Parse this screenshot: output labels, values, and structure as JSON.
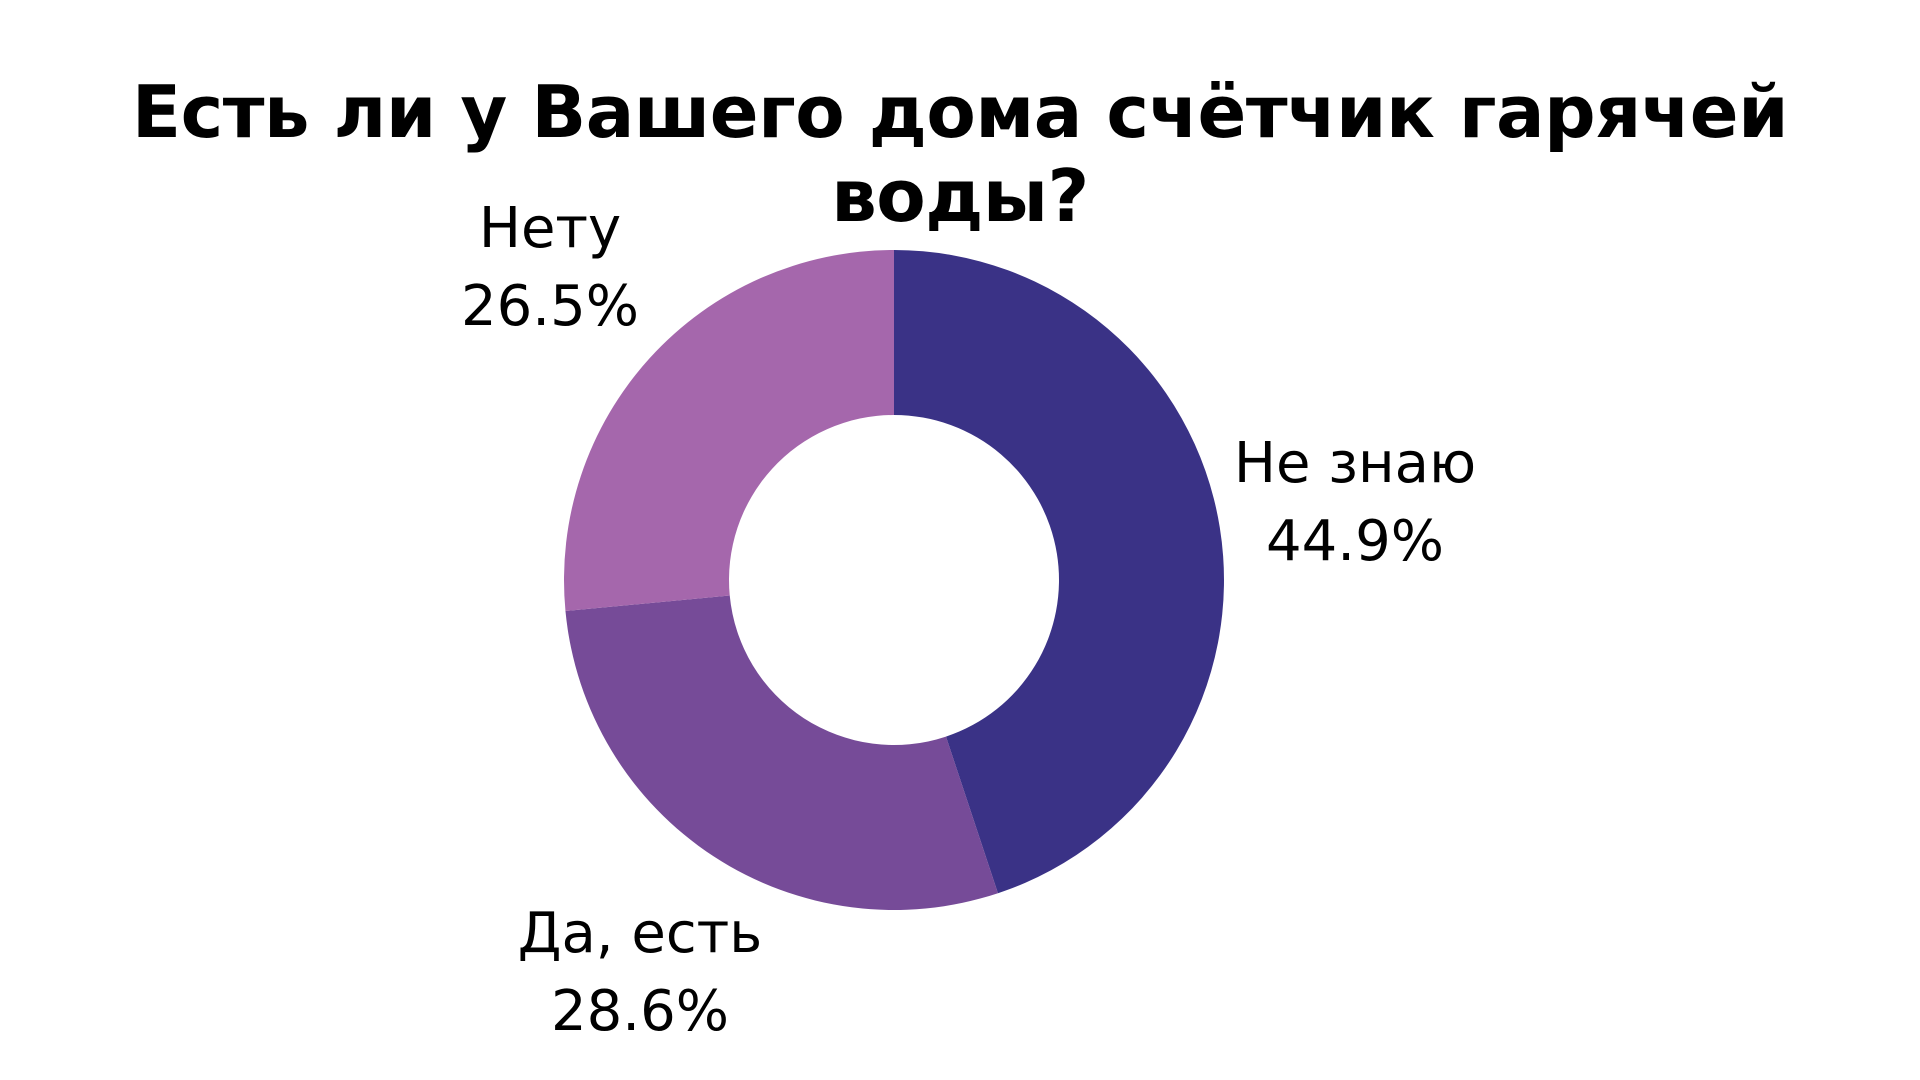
{
  "title": "Есть ли у Вашего дома счётчик гарячей воды?",
  "chart_data": {
    "type": "pie",
    "donut": true,
    "title": "Есть ли у Вашего дома счётчик гарячей воды?",
    "categories": [
      "Не знаю",
      "Да, есть",
      "Нету"
    ],
    "values": [
      44.9,
      28.6,
      26.5
    ],
    "unit": "%",
    "colors": [
      "#3A3286",
      "#764B98",
      "#A567AC"
    ],
    "start_angle": "12 o'clock, clockwise",
    "legend": "none (inline labels)"
  },
  "labels": {
    "ne_znayu": {
      "name": "Не знаю",
      "value": "44.9%"
    },
    "da_est": {
      "name": "Да, есть",
      "value": "28.6%"
    },
    "netu": {
      "name": "Нету",
      "value": "26.5%"
    }
  }
}
